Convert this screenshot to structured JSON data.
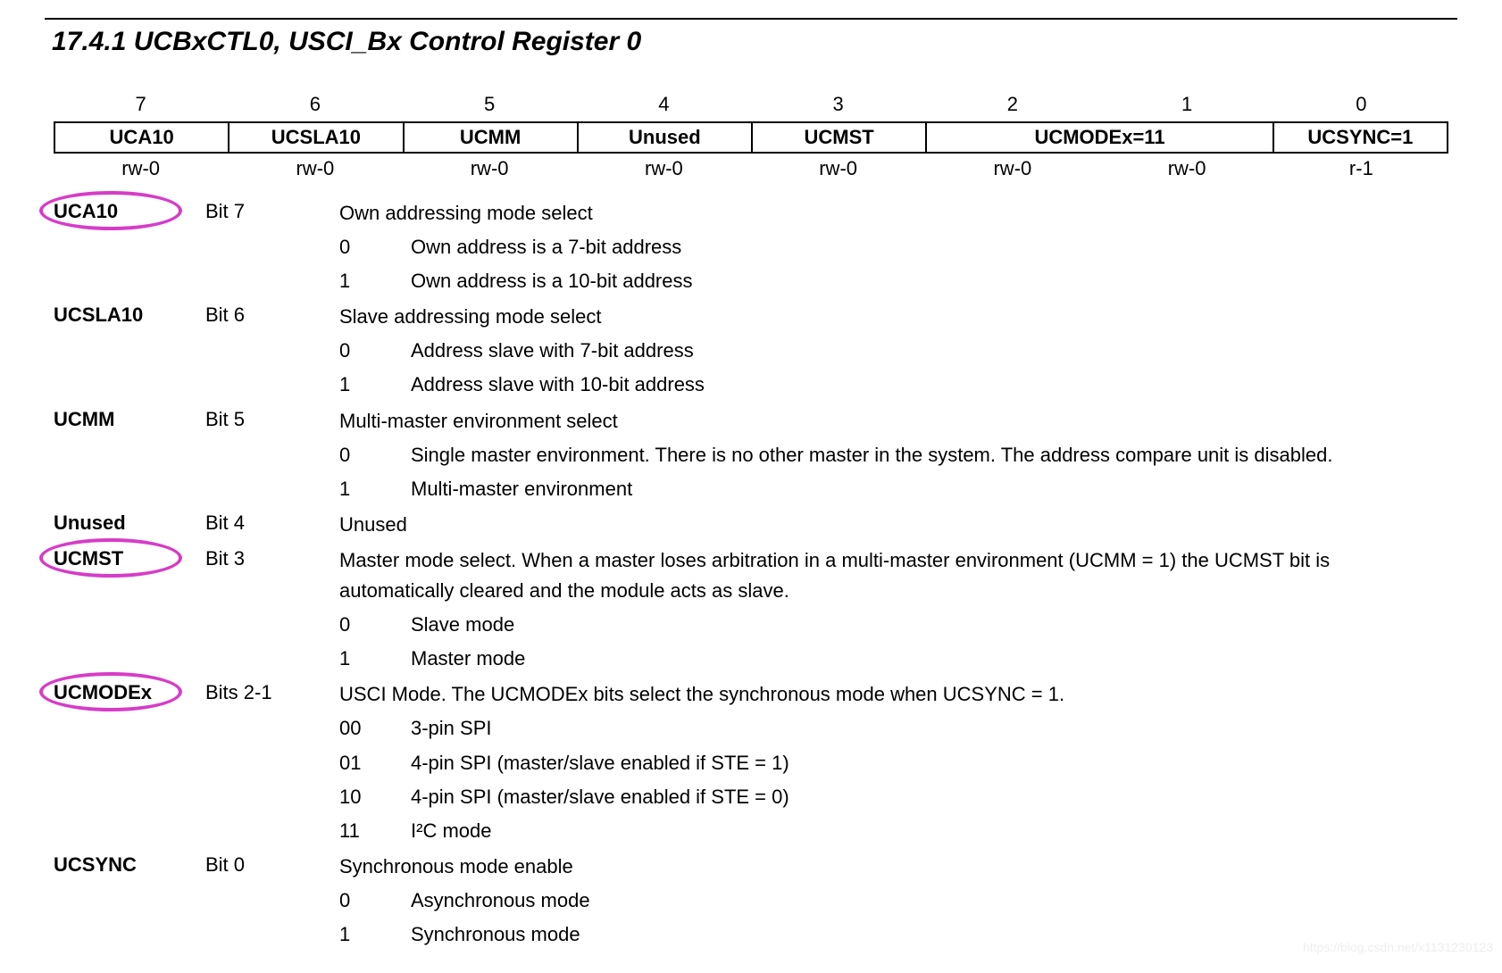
{
  "title": "17.4.1   UCBxCTL0, USCI_Bx Control Register 0",
  "bitNumbers": [
    "7",
    "6",
    "5",
    "4",
    "3",
    "2",
    "1",
    "0"
  ],
  "regCells": [
    {
      "label": "UCA10",
      "span": 1
    },
    {
      "label": "UCSLA10",
      "span": 1
    },
    {
      "label": "UCMM",
      "span": 1
    },
    {
      "label": "Unused",
      "span": 1
    },
    {
      "label": "UCMST",
      "span": 1
    },
    {
      "label": "UCMODEx=11",
      "span": 2
    },
    {
      "label": "UCSYNC=1",
      "span": 1
    }
  ],
  "access": [
    "rw-0",
    "rw-0",
    "rw-0",
    "rw-0",
    "rw-0",
    "rw-0",
    "rw-0",
    "r-1"
  ],
  "fields": [
    {
      "name": "UCA10",
      "bit": "Bit 7",
      "circled": true,
      "desc": "Own addressing mode select",
      "opts": [
        {
          "v": "0",
          "d": "Own address is a 7-bit address"
        },
        {
          "v": "1",
          "d": "Own address is a 10-bit address"
        }
      ]
    },
    {
      "name": "UCSLA10",
      "bit": "Bit 6",
      "circled": false,
      "desc": "Slave addressing mode select",
      "opts": [
        {
          "v": "0",
          "d": "Address slave with 7-bit address"
        },
        {
          "v": "1",
          "d": "Address slave with 10-bit address"
        }
      ]
    },
    {
      "name": "UCMM",
      "bit": "Bit 5",
      "circled": false,
      "desc": "Multi-master environment select",
      "opts": [
        {
          "v": "0",
          "d": "Single master environment. There is no other master in the system. The address compare unit is disabled."
        },
        {
          "v": "1",
          "d": "Multi-master environment"
        }
      ]
    },
    {
      "name": "Unused",
      "bit": "Bit 4",
      "circled": false,
      "desc": "Unused",
      "opts": []
    },
    {
      "name": "UCMST",
      "bit": "Bit 3",
      "circled": true,
      "desc": "Master mode select. When a master loses arbitration in a multi-master environment (UCMM = 1) the UCMST bit is automatically cleared and the module acts as slave.",
      "opts": [
        {
          "v": "0",
          "d": "Slave mode"
        },
        {
          "v": "1",
          "d": "Master mode"
        }
      ]
    },
    {
      "name": "UCMODEx",
      "bit": "Bits 2-1",
      "circled": true,
      "desc": "USCI Mode. The UCMODEx bits select the synchronous mode when UCSYNC = 1.",
      "opts": [
        {
          "v": "00",
          "d": "3-pin SPI"
        },
        {
          "v": "01",
          "d": "4-pin SPI (master/slave enabled if STE = 1)"
        },
        {
          "v": "10",
          "d": "4-pin SPI (master/slave enabled if STE = 0)"
        },
        {
          "v": "11",
          "d": "I²C mode"
        }
      ]
    },
    {
      "name": "UCSYNC",
      "bit": "Bit 0",
      "circled": false,
      "desc": "Synchronous mode enable",
      "opts": [
        {
          "v": "0",
          "d": "Asynchronous mode"
        },
        {
          "v": "1",
          "d": "Synchronous mode"
        }
      ]
    }
  ],
  "watermark": "https://blog.csdn.net/x1131230123",
  "colors": {
    "circle": "#d63cc8",
    "text": "#000000",
    "bg": "#ffffff"
  }
}
